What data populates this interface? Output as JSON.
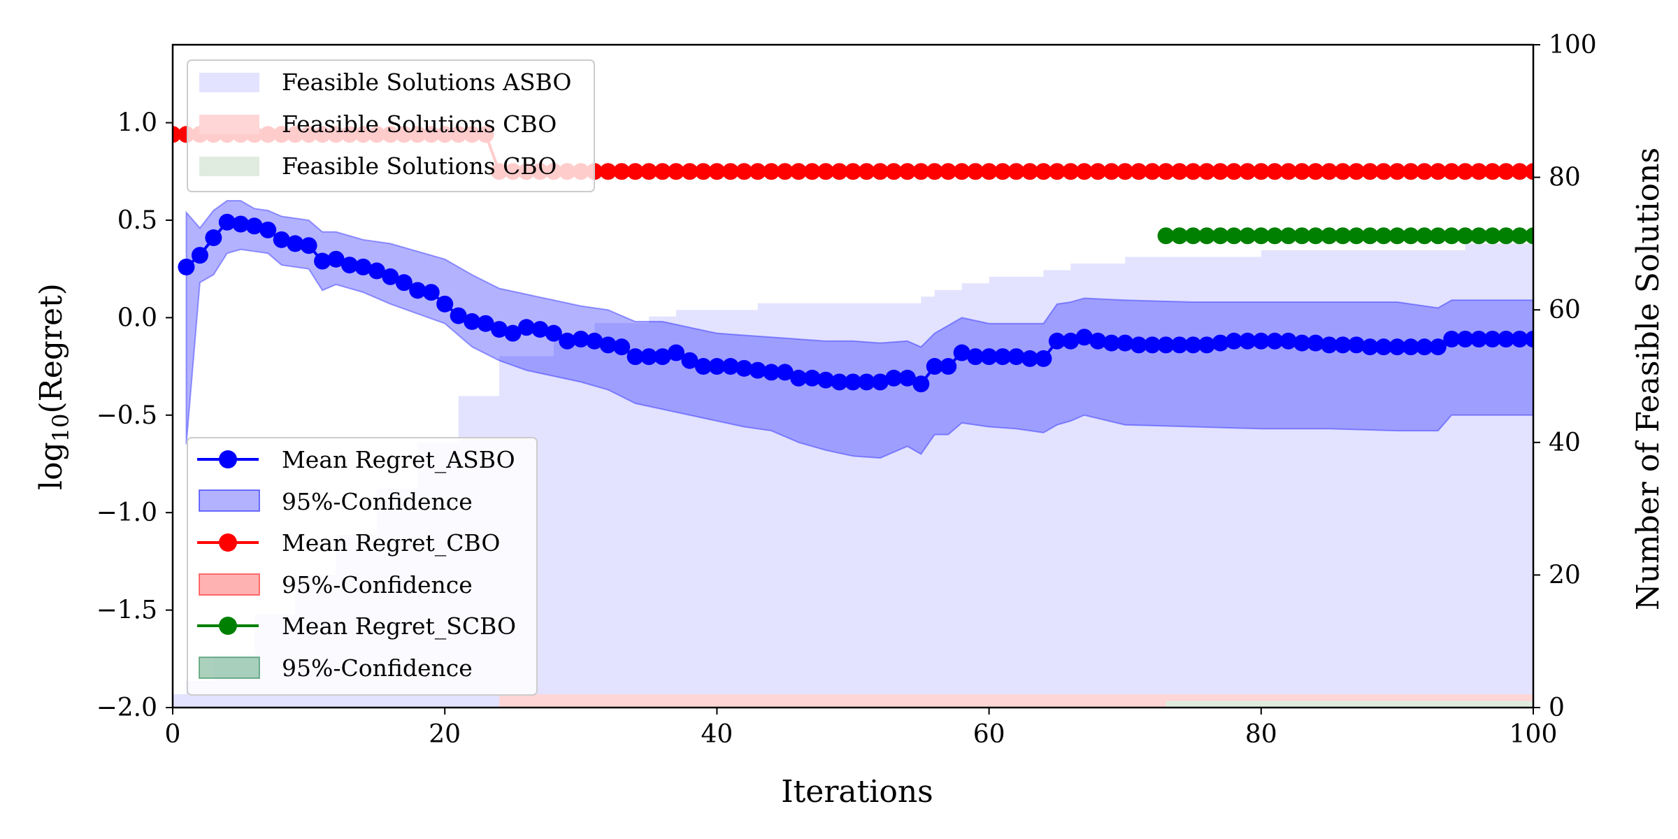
{
  "chart_data": {
    "type": "line",
    "xlabel": "Iterations",
    "ylabel_base": "log",
    "ylabel_sub": "10",
    "ylabel_rest": "(Regret)",
    "y2label": "Number of Feasible Solutions",
    "xlim": [
      0,
      100
    ],
    "ylim": [
      -2.0,
      1.4
    ],
    "y2lim": [
      0,
      100
    ],
    "x_ticks": [
      0,
      20,
      40,
      60,
      80,
      100
    ],
    "y_ticks": [
      -2.0,
      -1.5,
      -1.0,
      -0.5,
      0.0,
      0.5,
      1.0
    ],
    "y_tick_labels": [
      "−2.0",
      "−1.5",
      "−1.0",
      "−0.5",
      "0.0",
      "0.5",
      "1.0"
    ],
    "y2_ticks": [
      0,
      20,
      40,
      60,
      80,
      100
    ],
    "colors": {
      "asbo": "#0000ff",
      "asbo_band": "#0000ff",
      "cbo": "#ff0000",
      "cbo_band": "#ff8080",
      "scbo": "#008000",
      "scbo_band": "#2e8b57",
      "feasible_asbo": "#e3e3ff",
      "feasible_cbo": "#ffd6d6",
      "feasible_scbo": "#e0ece0"
    },
    "legend_upper": {
      "placement": "upper-left",
      "entries": [
        "Feasible Solutions ASBO",
        "Feasible Solutions CBO",
        "Feasible Solutions CBO"
      ]
    },
    "legend_lower": {
      "placement": "lower-left",
      "entries": [
        "Mean Regret_ASBO",
        "95%-Confidence",
        "Mean Regret_CBO",
        "95%-Confidence",
        "Mean Regret_SCBO",
        "95%-Confidence"
      ]
    },
    "feasible_asbo": {
      "x": [
        0,
        1,
        3,
        6,
        9,
        12,
        15,
        18,
        21,
        24,
        28,
        31,
        35,
        37,
        40,
        43,
        46,
        49,
        52,
        55,
        56,
        58,
        60,
        62,
        64,
        66,
        68,
        70,
        73,
        76,
        78,
        80,
        84,
        88,
        92,
        95,
        100
      ],
      "y": [
        2,
        4,
        8,
        14,
        20,
        26,
        33,
        40,
        47,
        53,
        56,
        58,
        59,
        60,
        60,
        61,
        61,
        61,
        61,
        62,
        63,
        64,
        65,
        65,
        66,
        67,
        67,
        68,
        68,
        68,
        68,
        69,
        69,
        69,
        69,
        70,
        70
      ]
    },
    "feasible_cbo": {
      "x": [
        0,
        23,
        24,
        100
      ],
      "y": [
        0,
        0,
        2,
        2
      ]
    },
    "feasible_scbo": {
      "x": [
        0,
        72,
        73,
        100
      ],
      "y": [
        0,
        0,
        1,
        1
      ]
    },
    "series": [
      {
        "name": "Mean Regret_ASBO",
        "x": [
          1,
          2,
          3,
          4,
          5,
          6,
          7,
          8,
          9,
          10,
          11,
          12,
          13,
          14,
          15,
          16,
          17,
          18,
          19,
          20,
          21,
          22,
          23,
          24,
          25,
          26,
          27,
          28,
          29,
          30,
          31,
          32,
          33,
          34,
          35,
          36,
          37,
          38,
          39,
          40,
          41,
          42,
          43,
          44,
          45,
          46,
          47,
          48,
          49,
          50,
          51,
          52,
          53,
          54,
          55,
          56,
          57,
          58,
          59,
          60,
          61,
          62,
          63,
          64,
          65,
          66,
          67,
          68,
          69,
          70,
          71,
          72,
          73,
          74,
          75,
          76,
          77,
          78,
          79,
          80,
          81,
          82,
          83,
          84,
          85,
          86,
          87,
          88,
          89,
          90,
          91,
          92,
          93,
          94,
          95,
          96,
          97,
          98,
          99,
          100
        ],
        "y": [
          0.26,
          0.32,
          0.41,
          0.49,
          0.48,
          0.47,
          0.45,
          0.4,
          0.38,
          0.37,
          0.29,
          0.3,
          0.27,
          0.26,
          0.24,
          0.21,
          0.18,
          0.14,
          0.13,
          0.07,
          0.01,
          -0.02,
          -0.03,
          -0.06,
          -0.08,
          -0.05,
          -0.06,
          -0.08,
          -0.12,
          -0.11,
          -0.12,
          -0.14,
          -0.15,
          -0.2,
          -0.2,
          -0.2,
          -0.18,
          -0.22,
          -0.25,
          -0.25,
          -0.25,
          -0.26,
          -0.27,
          -0.28,
          -0.28,
          -0.31,
          -0.31,
          -0.32,
          -0.33,
          -0.33,
          -0.33,
          -0.33,
          -0.31,
          -0.31,
          -0.34,
          -0.25,
          -0.25,
          -0.18,
          -0.2,
          -0.2,
          -0.2,
          -0.2,
          -0.21,
          -0.21,
          -0.12,
          -0.12,
          -0.1,
          -0.12,
          -0.13,
          -0.13,
          -0.14,
          -0.14,
          -0.14,
          -0.14,
          -0.14,
          -0.14,
          -0.13,
          -0.12,
          -0.12,
          -0.12,
          -0.12,
          -0.12,
          -0.13,
          -0.13,
          -0.14,
          -0.14,
          -0.14,
          -0.15,
          -0.15,
          -0.15,
          -0.15,
          -0.15,
          -0.15,
          -0.11,
          -0.11,
          -0.11,
          -0.11,
          -0.11,
          -0.11,
          -0.11
        ]
      },
      {
        "name": "Mean Regret_CBO",
        "x": [
          0,
          1,
          2,
          3,
          4,
          5,
          6,
          7,
          8,
          9,
          10,
          11,
          12,
          13,
          14,
          15,
          16,
          17,
          18,
          19,
          20,
          21,
          22,
          23,
          24,
          25,
          26,
          27,
          28,
          29,
          30,
          31,
          32,
          33,
          34,
          35,
          36,
          37,
          38,
          39,
          40,
          41,
          42,
          43,
          44,
          45,
          46,
          47,
          48,
          49,
          50,
          51,
          52,
          53,
          54,
          55,
          56,
          57,
          58,
          59,
          60,
          61,
          62,
          63,
          64,
          65,
          66,
          67,
          68,
          69,
          70,
          71,
          72,
          73,
          74,
          75,
          76,
          77,
          78,
          79,
          80,
          81,
          82,
          83,
          84,
          85,
          86,
          87,
          88,
          89,
          90,
          91,
          92,
          93,
          94,
          95,
          96,
          97,
          98,
          99,
          100
        ],
        "y": [
          0.94,
          0.94,
          0.94,
          0.94,
          0.94,
          0.94,
          0.94,
          0.94,
          0.94,
          0.94,
          0.94,
          0.94,
          0.94,
          0.94,
          0.94,
          0.94,
          0.94,
          0.94,
          0.94,
          0.94,
          0.94,
          0.94,
          0.94,
          0.94,
          0.75,
          0.75,
          0.75,
          0.75,
          0.75,
          0.75,
          0.75,
          0.75,
          0.75,
          0.75,
          0.75,
          0.75,
          0.75,
          0.75,
          0.75,
          0.75,
          0.75,
          0.75,
          0.75,
          0.75,
          0.75,
          0.75,
          0.75,
          0.75,
          0.75,
          0.75,
          0.75,
          0.75,
          0.75,
          0.75,
          0.75,
          0.75,
          0.75,
          0.75,
          0.75,
          0.75,
          0.75,
          0.75,
          0.75,
          0.75,
          0.75,
          0.75,
          0.75,
          0.75,
          0.75,
          0.75,
          0.75,
          0.75,
          0.75,
          0.75,
          0.75,
          0.75,
          0.75,
          0.75,
          0.75,
          0.75,
          0.75,
          0.75,
          0.75,
          0.75,
          0.75,
          0.75,
          0.75,
          0.75,
          0.75,
          0.75,
          0.75,
          0.75,
          0.75,
          0.75,
          0.75,
          0.75,
          0.75,
          0.75,
          0.75,
          0.75,
          0.75
        ]
      },
      {
        "name": "Mean Regret_SCBO",
        "x": [
          73,
          74,
          75,
          76,
          77,
          78,
          79,
          80,
          81,
          82,
          83,
          84,
          85,
          86,
          87,
          88,
          89,
          90,
          91,
          92,
          93,
          94,
          95,
          96,
          97,
          98,
          99,
          100
        ],
        "y": [
          0.42,
          0.42,
          0.42,
          0.42,
          0.42,
          0.42,
          0.42,
          0.42,
          0.42,
          0.42,
          0.42,
          0.42,
          0.42,
          0.42,
          0.42,
          0.42,
          0.42,
          0.42,
          0.42,
          0.42,
          0.42,
          0.42,
          0.42,
          0.42,
          0.42,
          0.42,
          0.42,
          0.42
        ]
      }
    ],
    "asbo_confidence": {
      "x": [
        1,
        2,
        3,
        4,
        5,
        6,
        7,
        8,
        10,
        11,
        12,
        14,
        16,
        18,
        20,
        22,
        24,
        26,
        28,
        30,
        32,
        34,
        36,
        38,
        40,
        42,
        44,
        46,
        48,
        50,
        52,
        54,
        55,
        56,
        57,
        58,
        60,
        62,
        64,
        65,
        66,
        67,
        70,
        75,
        80,
        85,
        90,
        93,
        94,
        100
      ],
      "lower": [
        -0.65,
        0.18,
        0.22,
        0.33,
        0.35,
        0.34,
        0.33,
        0.27,
        0.25,
        0.14,
        0.17,
        0.13,
        0.07,
        0.02,
        -0.03,
        -0.15,
        -0.22,
        -0.27,
        -0.3,
        -0.33,
        -0.37,
        -0.44,
        -0.47,
        -0.5,
        -0.53,
        -0.56,
        -0.58,
        -0.64,
        -0.68,
        -0.71,
        -0.72,
        -0.66,
        -0.7,
        -0.6,
        -0.6,
        -0.54,
        -0.56,
        -0.57,
        -0.59,
        -0.55,
        -0.53,
        -0.5,
        -0.55,
        -0.56,
        -0.57,
        -0.57,
        -0.58,
        -0.58,
        -0.5,
        -0.5
      ],
      "upper": [
        0.54,
        0.46,
        0.55,
        0.6,
        0.6,
        0.56,
        0.55,
        0.52,
        0.5,
        0.44,
        0.44,
        0.4,
        0.38,
        0.34,
        0.3,
        0.22,
        0.15,
        0.12,
        0.09,
        0.06,
        0.04,
        -0.02,
        -0.02,
        -0.05,
        -0.08,
        -0.09,
        -0.1,
        -0.11,
        -0.12,
        -0.12,
        -0.13,
        -0.12,
        -0.15,
        -0.08,
        -0.04,
        0.0,
        -0.03,
        -0.03,
        -0.03,
        0.07,
        0.08,
        0.1,
        0.09,
        0.08,
        0.08,
        0.08,
        0.08,
        0.05,
        0.09,
        0.09
      ]
    }
  }
}
